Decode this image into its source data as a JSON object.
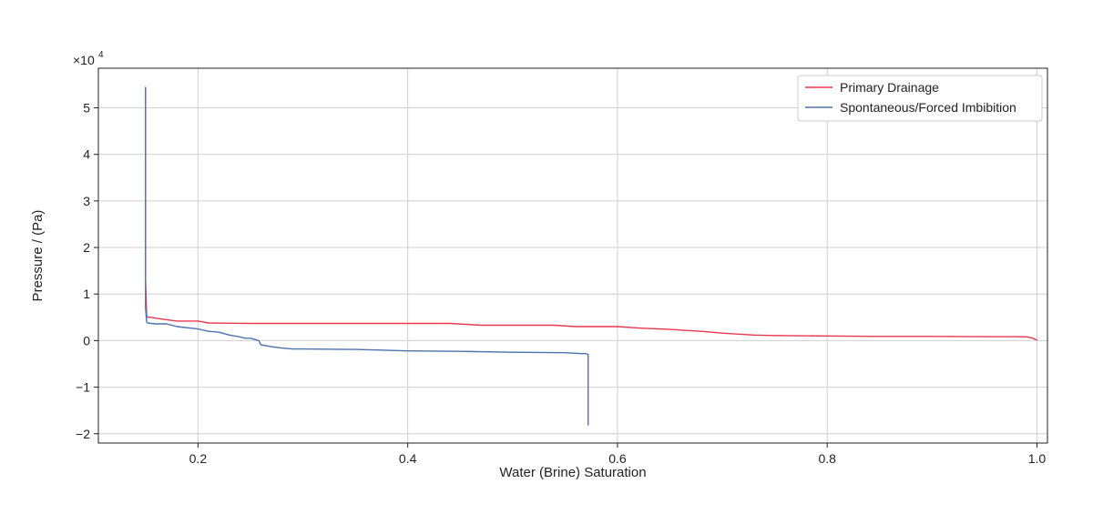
{
  "chart_data": {
    "type": "line",
    "title": "",
    "xlabel": "Water (Brine) Saturation",
    "ylabel": "Pressure / (Pa)",
    "y_scale_factor": "×10",
    "y_scale_exponent": "4",
    "xlim": [
      0.105,
      1.01
    ],
    "ylim": [
      -2.2,
      5.85
    ],
    "x_ticks": [
      0.2,
      0.4,
      0.6,
      0.8,
      1.0
    ],
    "x_tick_labels": [
      "0.2",
      "0.4",
      "0.6",
      "0.8",
      "1.0"
    ],
    "y_ticks": [
      -2,
      -1,
      0,
      1,
      2,
      3,
      4,
      5
    ],
    "y_tick_labels": [
      "−2",
      "−1",
      "0",
      "1",
      "2",
      "3",
      "4",
      "5"
    ],
    "grid": true,
    "legend_position": "top-right",
    "series": [
      {
        "name": "Primary Drainage",
        "color": "#e8384f",
        "x": [
          0.15,
          0.15,
          0.151,
          0.152,
          0.155,
          0.16,
          0.17,
          0.18,
          0.2,
          0.21,
          0.25,
          0.3,
          0.35,
          0.4,
          0.44,
          0.47,
          0.5,
          0.54,
          0.56,
          0.6,
          0.62,
          0.65,
          0.68,
          0.7,
          0.73,
          0.75,
          0.8,
          0.85,
          0.9,
          0.95,
          0.98,
          0.99,
          0.995,
          1.0
        ],
        "y": [
          5.4,
          1.3,
          0.55,
          0.5,
          0.5,
          0.48,
          0.45,
          0.42,
          0.42,
          0.38,
          0.37,
          0.37,
          0.37,
          0.37,
          0.37,
          0.33,
          0.33,
          0.33,
          0.3,
          0.3,
          0.27,
          0.24,
          0.2,
          0.16,
          0.12,
          0.11,
          0.1,
          0.09,
          0.09,
          0.085,
          0.085,
          0.08,
          0.06,
          0.01
        ]
      },
      {
        "name": "Spontaneous/Forced Imbibition",
        "color": "#4c72b0",
        "x": [
          0.15,
          0.15,
          0.151,
          0.152,
          0.155,
          0.16,
          0.17,
          0.18,
          0.2,
          0.21,
          0.22,
          0.23,
          0.24,
          0.245,
          0.25,
          0.258,
          0.259,
          0.26,
          0.27,
          0.28,
          0.29,
          0.3,
          0.35,
          0.4,
          0.45,
          0.5,
          0.55,
          0.565,
          0.57,
          0.572,
          0.572,
          0.572
        ],
        "y": [
          5.45,
          0.7,
          0.4,
          0.38,
          0.37,
          0.36,
          0.36,
          0.3,
          0.25,
          0.2,
          0.18,
          0.12,
          0.08,
          0.05,
          0.05,
          0.0,
          -0.05,
          -0.09,
          -0.13,
          -0.16,
          -0.18,
          -0.18,
          -0.19,
          -0.22,
          -0.23,
          -0.25,
          -0.26,
          -0.28,
          -0.28,
          -0.3,
          -1.2,
          -1.82
        ]
      }
    ]
  }
}
